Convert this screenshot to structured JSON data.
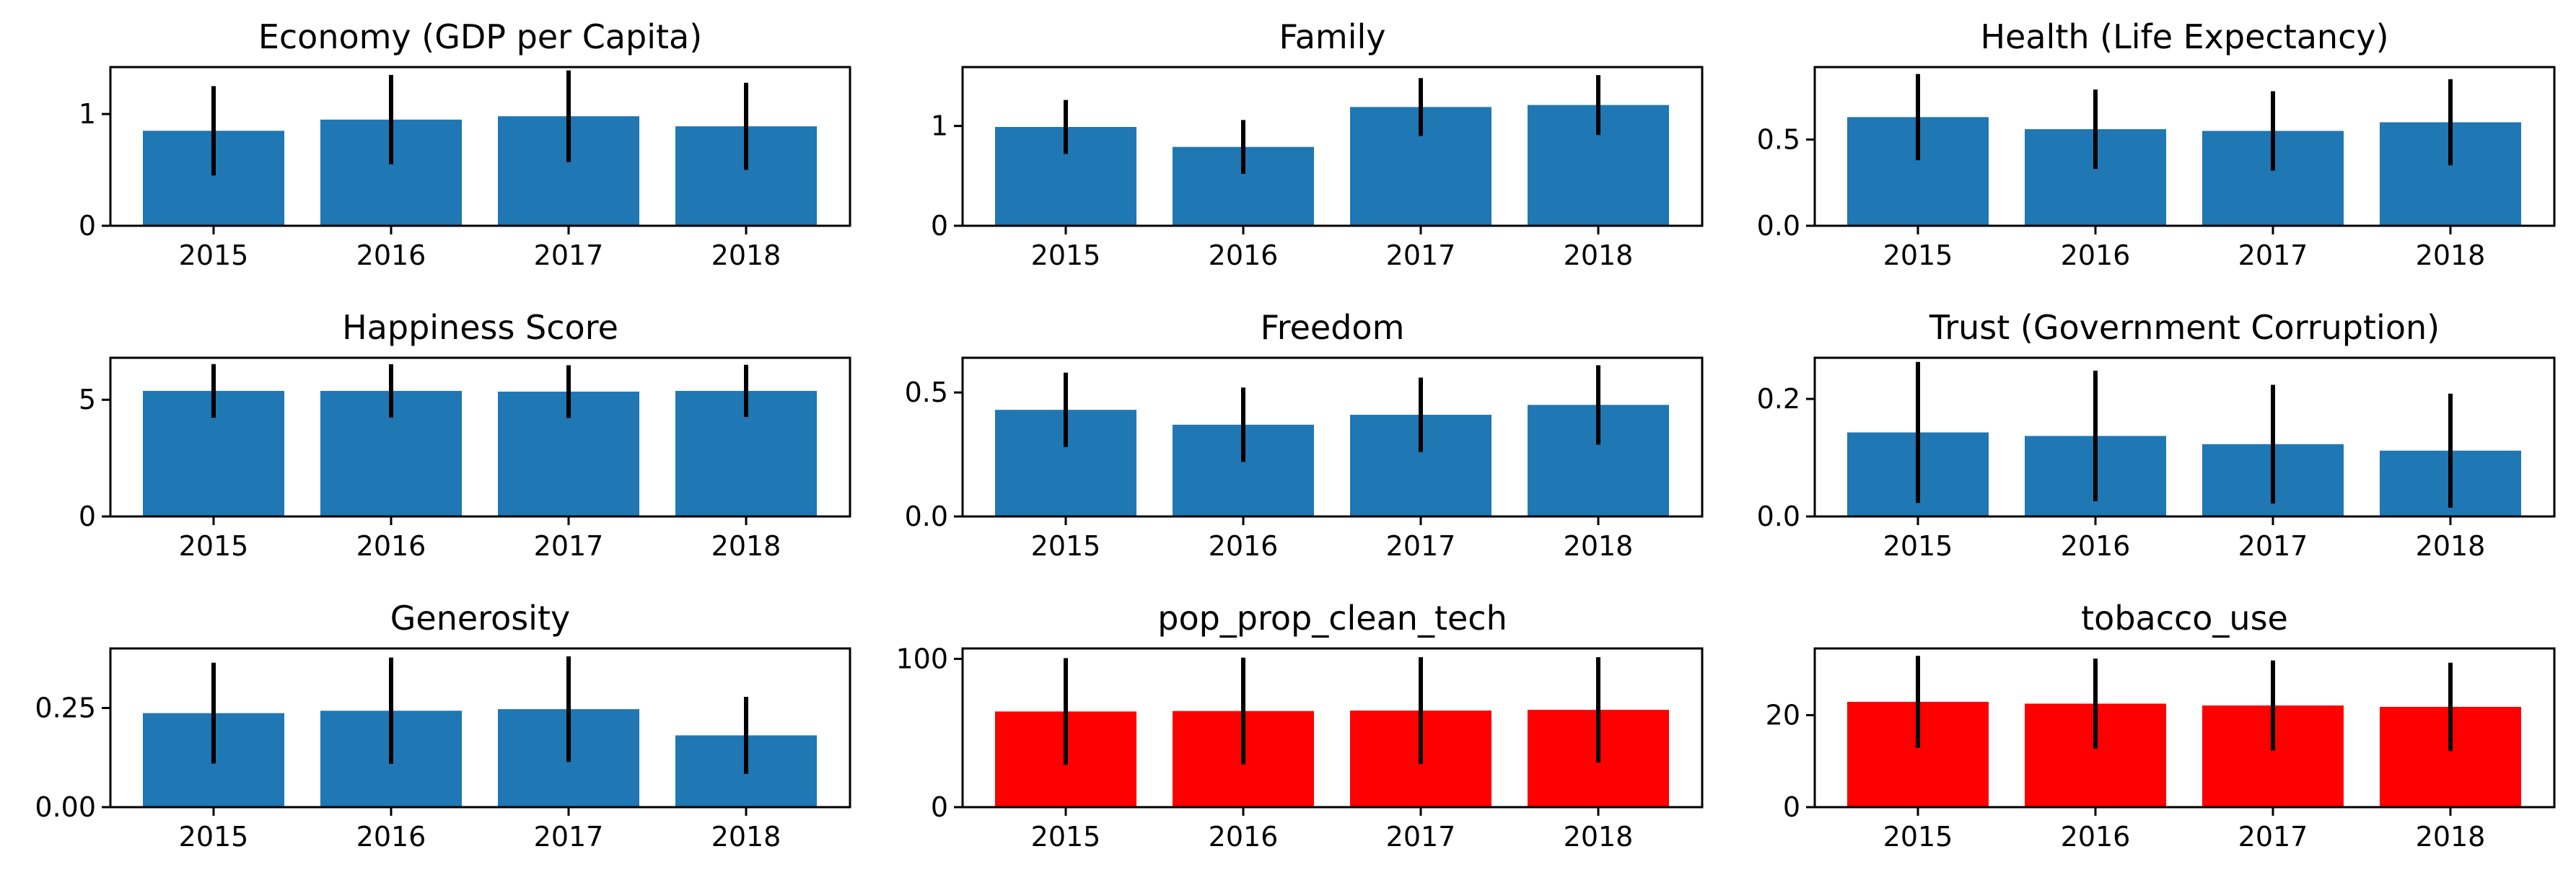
{
  "chart_data": [
    {
      "type": "bar",
      "title": "Economy (GDP per Capita)",
      "categories": [
        "2015",
        "2016",
        "2017",
        "2018"
      ],
      "values": [
        0.85,
        0.95,
        0.98,
        0.89
      ],
      "errors": [
        0.4,
        0.4,
        0.41,
        0.39
      ],
      "ylim": [
        0,
        1.42
      ],
      "yticks": [
        0,
        1
      ],
      "ytick_labels": [
        "0",
        "1"
      ],
      "color": "#1f77b4"
    },
    {
      "type": "bar",
      "title": "Family",
      "categories": [
        "2015",
        "2016",
        "2017",
        "2018"
      ],
      "values": [
        0.99,
        0.79,
        1.19,
        1.21
      ],
      "errors": [
        0.27,
        0.27,
        0.29,
        0.3
      ],
      "ylim": [
        0,
        1.59
      ],
      "yticks": [
        0,
        1
      ],
      "ytick_labels": [
        "0",
        "1"
      ],
      "color": "#1f77b4"
    },
    {
      "type": "bar",
      "title": "Health (Life Expectancy)",
      "categories": [
        "2015",
        "2016",
        "2017",
        "2018"
      ],
      "values": [
        0.63,
        0.56,
        0.55,
        0.6
      ],
      "errors": [
        0.25,
        0.23,
        0.23,
        0.25
      ],
      "ylim": [
        0,
        0.92
      ],
      "yticks": [
        0,
        0.5
      ],
      "ytick_labels": [
        "0.0",
        "0.5"
      ],
      "color": "#1f77b4"
    },
    {
      "type": "bar",
      "title": "Happiness Score",
      "categories": [
        "2015",
        "2016",
        "2017",
        "2018"
      ],
      "values": [
        5.38,
        5.38,
        5.35,
        5.38
      ],
      "errors": [
        1.15,
        1.14,
        1.13,
        1.12
      ],
      "ylim": [
        0,
        6.8
      ],
      "yticks": [
        0,
        5
      ],
      "ytick_labels": [
        "0",
        "5"
      ],
      "color": "#1f77b4"
    },
    {
      "type": "bar",
      "title": "Freedom",
      "categories": [
        "2015",
        "2016",
        "2017",
        "2018"
      ],
      "values": [
        0.43,
        0.37,
        0.41,
        0.45
      ],
      "errors": [
        0.15,
        0.15,
        0.15,
        0.16
      ],
      "ylim": [
        0,
        0.64
      ],
      "yticks": [
        0,
        0.5
      ],
      "ytick_labels": [
        "0.0",
        "0.5"
      ],
      "color": "#1f77b4"
    },
    {
      "type": "bar",
      "title": "Trust (Government Corruption)",
      "categories": [
        "2015",
        "2016",
        "2017",
        "2018"
      ],
      "values": [
        0.143,
        0.137,
        0.123,
        0.112
      ],
      "errors": [
        0.12,
        0.111,
        0.101,
        0.097
      ],
      "ylim": [
        0,
        0.27
      ],
      "yticks": [
        0,
        0.2
      ],
      "ytick_labels": [
        "0.0",
        "0.2"
      ],
      "color": "#1f77b4"
    },
    {
      "type": "bar",
      "title": "Generosity",
      "categories": [
        "2015",
        "2016",
        "2017",
        "2018"
      ],
      "values": [
        0.237,
        0.243,
        0.247,
        0.181
      ],
      "errors": [
        0.127,
        0.134,
        0.133,
        0.097
      ],
      "ylim": [
        0,
        0.4
      ],
      "yticks": [
        0,
        0.25
      ],
      "ytick_labels": [
        "0.00",
        "0.25"
      ],
      "color": "#1f77b4"
    },
    {
      "type": "bar",
      "title": "pop_prop_clean_tech",
      "categories": [
        "2015",
        "2016",
        "2017",
        "2018"
      ],
      "values": [
        64.5,
        64.8,
        65.1,
        65.6
      ],
      "errors": [
        36,
        36,
        36,
        35.5
      ],
      "ylim": [
        0,
        107
      ],
      "yticks": [
        0,
        100
      ],
      "ytick_labels": [
        "0",
        "100"
      ],
      "color": "#ff0000"
    },
    {
      "type": "bar",
      "title": "tobacco_use",
      "categories": [
        "2015",
        "2016",
        "2017",
        "2018"
      ],
      "values": [
        22.9,
        22.5,
        22.1,
        21.8
      ],
      "errors": [
        10,
        9.8,
        9.8,
        9.6
      ],
      "ylim": [
        0,
        34.5
      ],
      "yticks": [
        0,
        20
      ],
      "ytick_labels": [
        "0",
        "20"
      ],
      "color": "#ff0000"
    }
  ]
}
